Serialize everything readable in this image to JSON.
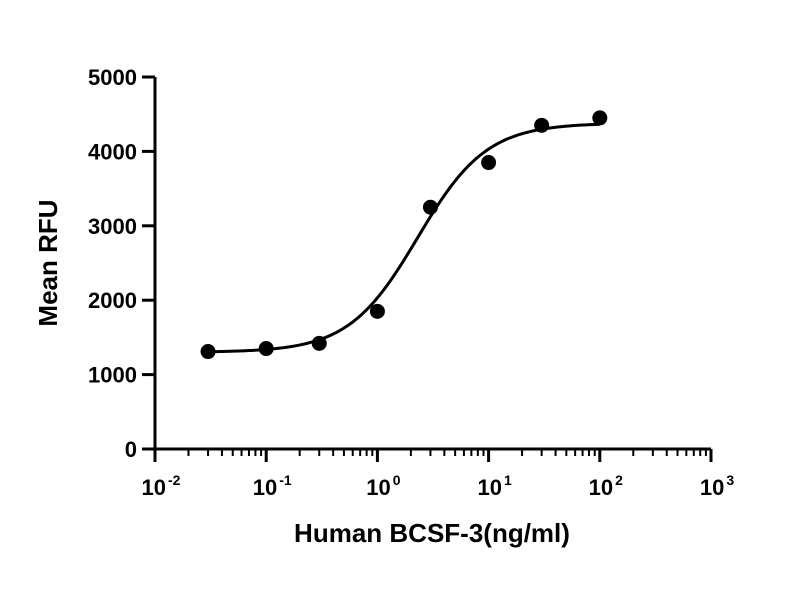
{
  "chart_data": {
    "type": "scatter",
    "title": "",
    "xlabel": "Human BCSF-3(ng/ml)",
    "ylabel": "Mean RFU",
    "x_scale": "log10",
    "xlim": [
      0.01,
      1000
    ],
    "ylim": [
      0,
      5000
    ],
    "x_ticks": [
      {
        "base": "10",
        "exp": "-2"
      },
      {
        "base": "10",
        "exp": "-1"
      },
      {
        "base": "10",
        "exp": "0"
      },
      {
        "base": "10",
        "exp": "1"
      },
      {
        "base": "10",
        "exp": "2"
      },
      {
        "base": "10",
        "exp": "3"
      }
    ],
    "y_ticks": [
      "0",
      "1000",
      "2000",
      "3000",
      "4000",
      "5000"
    ],
    "grid": false,
    "legend": "none",
    "series": [
      {
        "x": [
          0.03,
          0.1,
          0.3,
          1,
          3,
          10,
          30,
          100
        ],
        "y": [
          1310,
          1350,
          1420,
          1850,
          3250,
          3850,
          4350,
          4450
        ]
      }
    ],
    "fit_curve": {
      "model": "four-parameter logistic",
      "bottom": 1300,
      "top": 4380,
      "ec50": 2.3,
      "hill": 1.4,
      "x_range": [
        0.03,
        100
      ]
    },
    "marker_color": "#000000",
    "line_color": "#000000"
  }
}
